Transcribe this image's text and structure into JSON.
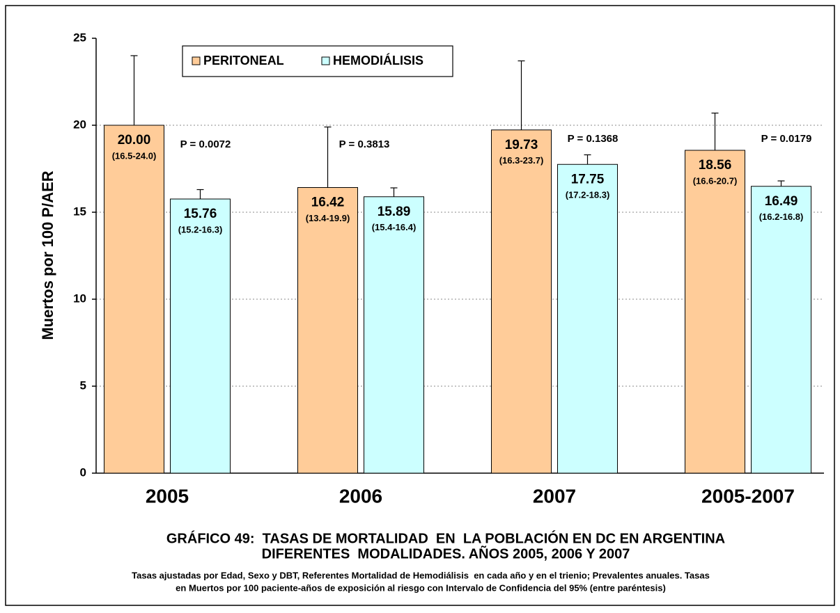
{
  "chart_data": {
    "type": "bar",
    "y_label": "Muertos por 100 P/AER",
    "categories": [
      "2005",
      "2006",
      "2007",
      "2005-2007"
    ],
    "series": [
      {
        "name": "PERITONEAL",
        "color": "#ffcc99",
        "values": [
          20.0,
          16.42,
          19.73,
          18.56
        ],
        "value_labels": [
          "20.00",
          "16.42",
          "19.73",
          "18.56"
        ],
        "ci_upper": [
          24.0,
          19.9,
          23.7,
          20.7
        ],
        "ci_labels": [
          "(16.5-24.0)",
          "(13.4-19.9)",
          "(16.3-23.7)",
          "(16.6-20.7)"
        ]
      },
      {
        "name": "HEMODIÁLISIS",
        "color": "#ccffff",
        "values": [
          15.76,
          15.89,
          17.75,
          16.49
        ],
        "value_labels": [
          "15.76",
          "15.89",
          "17.75",
          "16.49"
        ],
        "ci_upper": [
          16.3,
          16.4,
          18.3,
          16.8
        ],
        "ci_labels": [
          "(15.2-16.3)",
          "(15.4-16.4)",
          "(17.2-18.3)",
          "(16.2-16.8)"
        ]
      }
    ],
    "p_values": [
      "P = 0.0072",
      "P = 0.3813",
      "P = 0.1368",
      "P = 0.0179"
    ],
    "ylim": [
      0,
      25
    ],
    "yticks": [
      0,
      5,
      10,
      15,
      20,
      25
    ],
    "grid": true,
    "legend": "top",
    "title": [
      "GRÁFICO 49:  TASAS DE MORTALIDAD  EN  LA POBLACIÓN EN DC EN ARGENTINA",
      "DIFERENTES  MODALIDADES. AÑOS 2005, 2006 Y 2007"
    ],
    "footnote": [
      "Tasas ajustadas por Edad, Sexo y DBT, Referentes Mortalidad de Hemodiálisis  en cada año y en el trienio; Prevalentes anuales. Tasas",
      "en Muertos por 100 paciente-años de exposición al riesgo con Intervalo de Confidencia del 95% (entre paréntesis)"
    ]
  }
}
